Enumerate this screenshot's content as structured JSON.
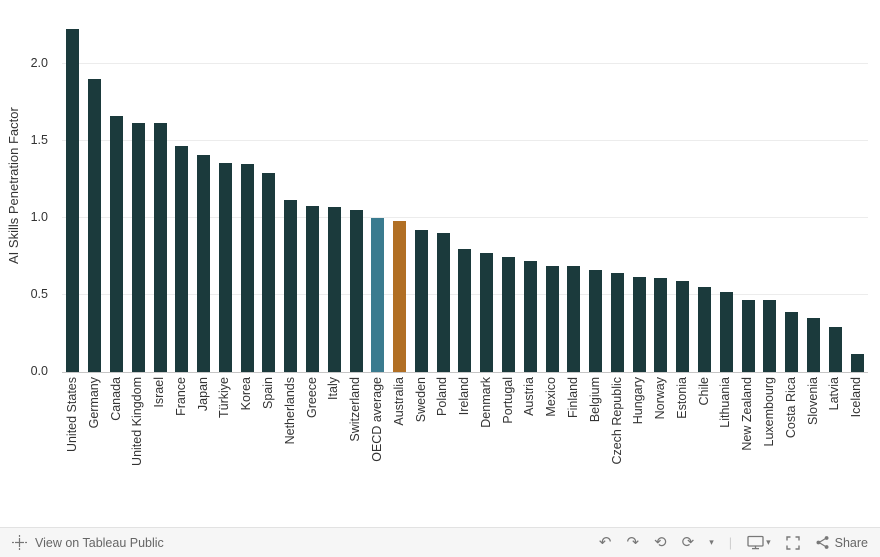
{
  "chart_data": {
    "type": "bar",
    "title": "",
    "xlabel": "",
    "ylabel": "AI Skills Penetration Factor",
    "ylim": [
      0,
      2.4
    ],
    "yticks": [
      "0.0",
      "0.5",
      "1.0",
      "1.5",
      "2.0"
    ],
    "grid": true,
    "legend": "none",
    "categories": [
      "United States",
      "Germany",
      "Canada",
      "United Kingdom",
      "Israel",
      "France",
      "Japan",
      "Türkiye",
      "Korea",
      "Spain",
      "Netherlands",
      "Greece",
      "Italy",
      "Switzerland",
      "OECD average",
      "Australia",
      "Sweden",
      "Poland",
      "Ireland",
      "Denmark",
      "Portugal",
      "Austria",
      "Mexico",
      "Finland",
      "Belgium",
      "Czech Republic",
      "Hungary",
      "Norway",
      "Estonia",
      "Chile",
      "Lithuania",
      "New Zealand",
      "Luxembourg",
      "Costa Rica",
      "Slovenia",
      "Latvia",
      "Iceland"
    ],
    "values": [
      2.23,
      1.9,
      1.66,
      1.62,
      1.62,
      1.47,
      1.41,
      1.36,
      1.35,
      1.29,
      1.12,
      1.08,
      1.07,
      1.05,
      1.0,
      0.98,
      0.92,
      0.9,
      0.8,
      0.77,
      0.75,
      0.72,
      0.69,
      0.69,
      0.66,
      0.64,
      0.62,
      0.61,
      0.59,
      0.55,
      0.52,
      0.47,
      0.47,
      0.39,
      0.35,
      0.29,
      0.12
    ],
    "default_color": "#1b3a3c",
    "highlighted": [
      {
        "category": "OECD average",
        "color": "#3a7b8f"
      },
      {
        "category": "Australia",
        "color": "#b16f24"
      }
    ]
  },
  "footer": {
    "view_label": "View on Tableau Public",
    "share_label": "Share",
    "glyphs": {
      "undo": "↶",
      "redo": "↷",
      "revert": "⟲",
      "refresh": "⟳",
      "caret": "▾",
      "divider": "|"
    },
    "icons": [
      "tableau-logo",
      "undo",
      "redo",
      "revert",
      "refresh",
      "pause-caret",
      "download",
      "fullscreen",
      "share"
    ]
  }
}
